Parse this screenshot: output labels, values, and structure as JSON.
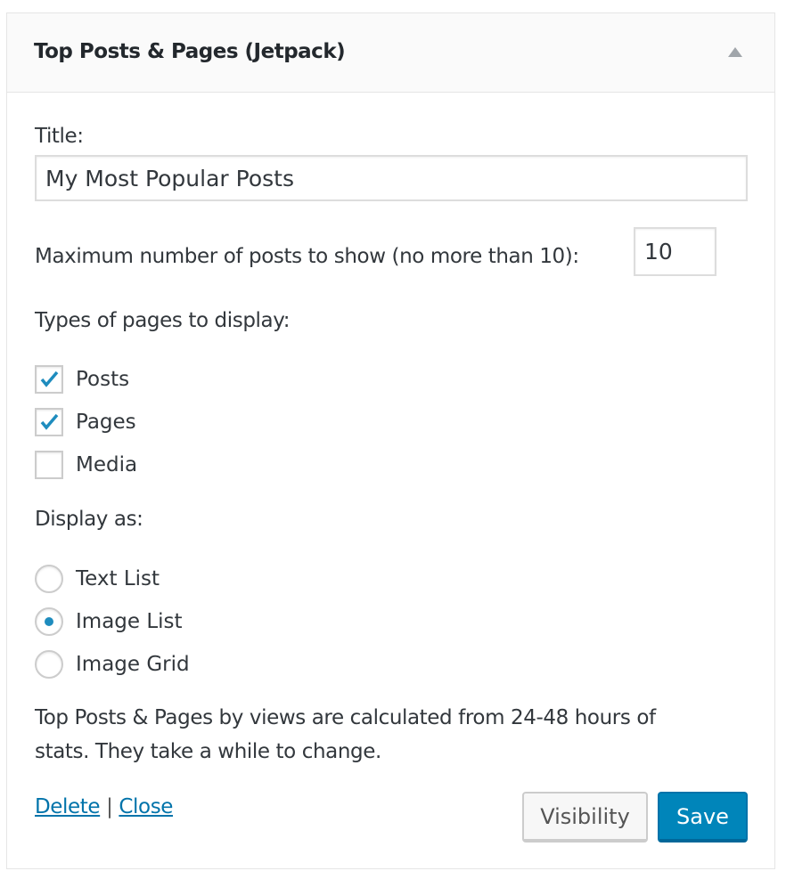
{
  "widget": {
    "title": "Top Posts & Pages (Jetpack)",
    "toggle_icon": "triangle-up-icon"
  },
  "form": {
    "title_label": "Title:",
    "title_value": "My Most Popular Posts",
    "max_label": "Maximum number of posts to show (no more than 10):",
    "max_value": "10",
    "types_label": "Types of pages to display:",
    "types": [
      {
        "label": "Posts",
        "checked": true
      },
      {
        "label": "Pages",
        "checked": true
      },
      {
        "label": "Media",
        "checked": false
      }
    ],
    "display_label": "Display as:",
    "display": [
      {
        "label": "Text List",
        "selected": false
      },
      {
        "label": "Image List",
        "selected": true
      },
      {
        "label": "Image Grid",
        "selected": false
      }
    ],
    "note_line1": "Top Posts & Pages by views are calculated from 24-48 hours of",
    "note_line2": "stats. They take a while to change."
  },
  "footer": {
    "delete": "Delete",
    "separator": "|",
    "close": "Close",
    "visibility": "Visibility",
    "save": "Save"
  },
  "colors": {
    "accent": "#0085ba",
    "link": "#0073aa"
  }
}
